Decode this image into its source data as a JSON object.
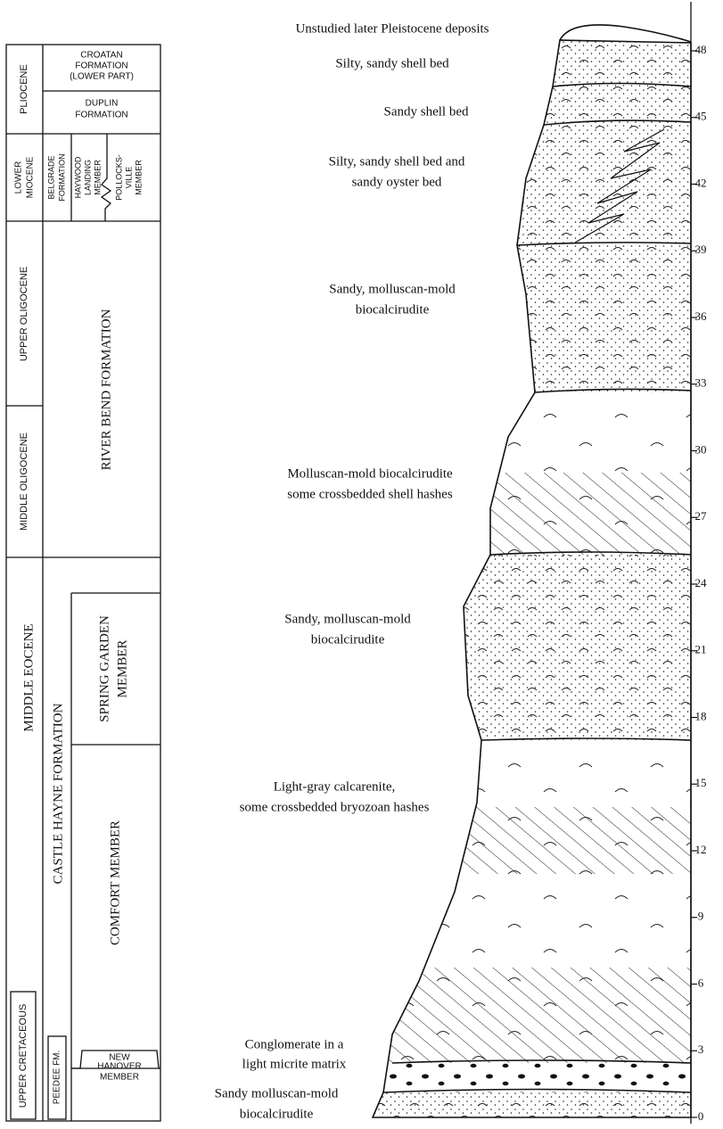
{
  "left_column": {
    "pliocene": "PLIOCENE",
    "croatan": [
      "CROATAN",
      "FORMATION",
      "(LOWER PART)"
    ],
    "duplin": [
      "DUPLIN",
      "FORMATION"
    ],
    "lower_miocene": [
      "LOWER",
      "MIOCENE"
    ],
    "belgrade": [
      "BELGRADE",
      "FORMATION"
    ],
    "haywood": [
      "HAYWOOD",
      "LANDING",
      "MEMBER"
    ],
    "pollocksville": [
      "POLLOCKS-",
      "VILLE",
      "MEMBER"
    ],
    "upper_oligocene": "UPPER OLIGOCENE",
    "river_bend": "RIVER BEND FORMATION",
    "middle_oligocene": "MIDDLE OLIGOCENE",
    "middle_eocene": "MIDDLE EOCENE",
    "castle_hayne": "CASTLE HAYNE FORMATION",
    "spring_garden": [
      "SPRING GARDEN",
      "MEMBER"
    ],
    "comfort": "COMFORT MEMBER",
    "upper_cretaceous": "UPPER CRETACEOUS",
    "peedee": "PEEDEE FM.",
    "new_hanover": [
      "NEW",
      "HANOVER",
      "MEMBER"
    ]
  },
  "beds": [
    {
      "description": [
        "Unstudied later Pleistocene deposits"
      ]
    },
    {
      "description": [
        "Silty, sandy shell bed"
      ]
    },
    {
      "description": [
        "Sandy shell bed"
      ]
    },
    {
      "description": [
        "Silty, sandy shell bed and",
        "sandy oyster bed"
      ]
    },
    {
      "description": [
        "Sandy, molluscan-mold",
        "biocalcirudite"
      ]
    },
    {
      "description": [
        "Molluscan-mold biocalcirudite",
        "some crossbedded shell hashes"
      ]
    },
    {
      "description": [
        "Sandy, molluscan-mold",
        "biocalcirudite"
      ]
    },
    {
      "description": [
        "Light-gray calcarenite,",
        "some crossbedded bryozoan hashes"
      ]
    },
    {
      "description": [
        "Conglomerate in a",
        "light micrite matrix"
      ]
    },
    {
      "description": [
        "Sandy molluscan-mold",
        "biocalcirudite"
      ]
    }
  ],
  "scale": {
    "ticks": [
      0,
      3,
      6,
      9,
      12,
      15,
      18,
      21,
      24,
      27,
      30,
      33,
      36,
      39,
      42,
      45,
      48
    ]
  }
}
